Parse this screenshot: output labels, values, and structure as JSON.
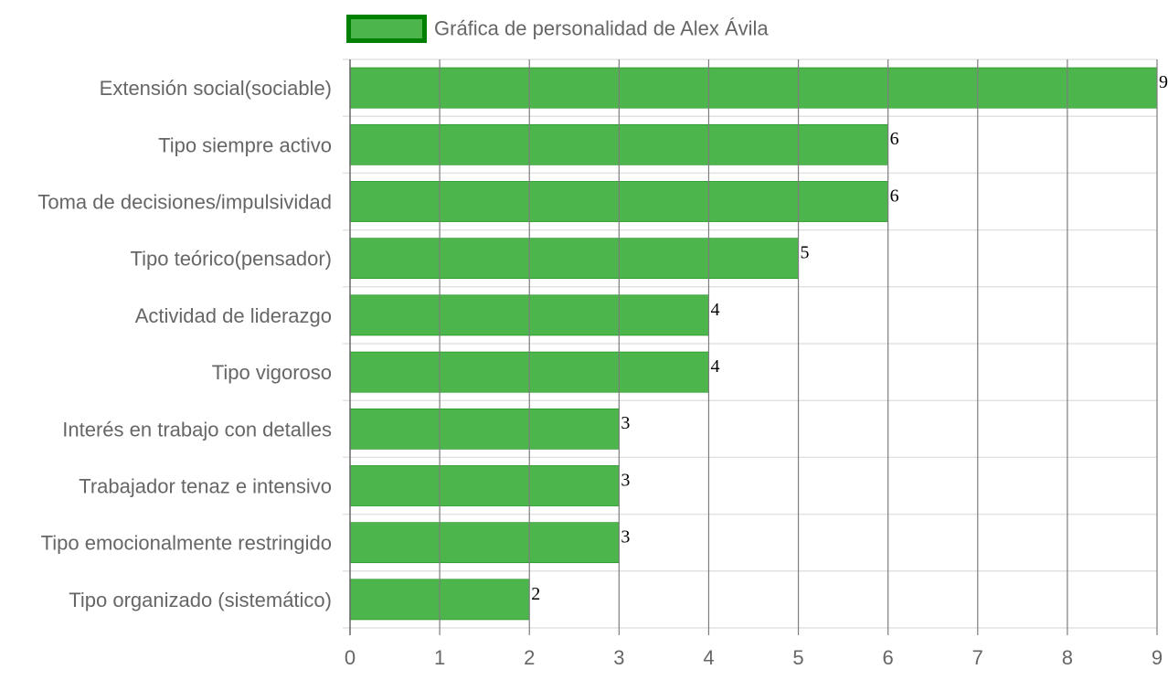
{
  "chart_data": {
    "type": "bar",
    "orientation": "horizontal",
    "categories": [
      "Extensión social(sociable)",
      "Tipo siempre activo",
      "Toma de decisiones/impulsividad",
      "Tipo teórico(pensador)",
      "Actividad de liderazgo",
      "Tipo vigoroso",
      "Interés en trabajo con detalles",
      "Trabajador tenaz e intensivo",
      "Tipo emocionalmente restringido",
      "Tipo organizado (sistemático)"
    ],
    "series": [
      {
        "name": "Gráfica de personalidad de Alex Ávila",
        "values": [
          9,
          6,
          6,
          5,
          4,
          4,
          3,
          3,
          3,
          2
        ],
        "color": "#4cb64c",
        "border_color": "#008000"
      }
    ],
    "xlim": [
      0,
      9
    ],
    "x_ticks": [
      "0",
      "1",
      "2",
      "3",
      "4",
      "5",
      "6",
      "7",
      "8",
      "9"
    ],
    "grid": true,
    "legend_position": "top",
    "data_labels": true
  }
}
